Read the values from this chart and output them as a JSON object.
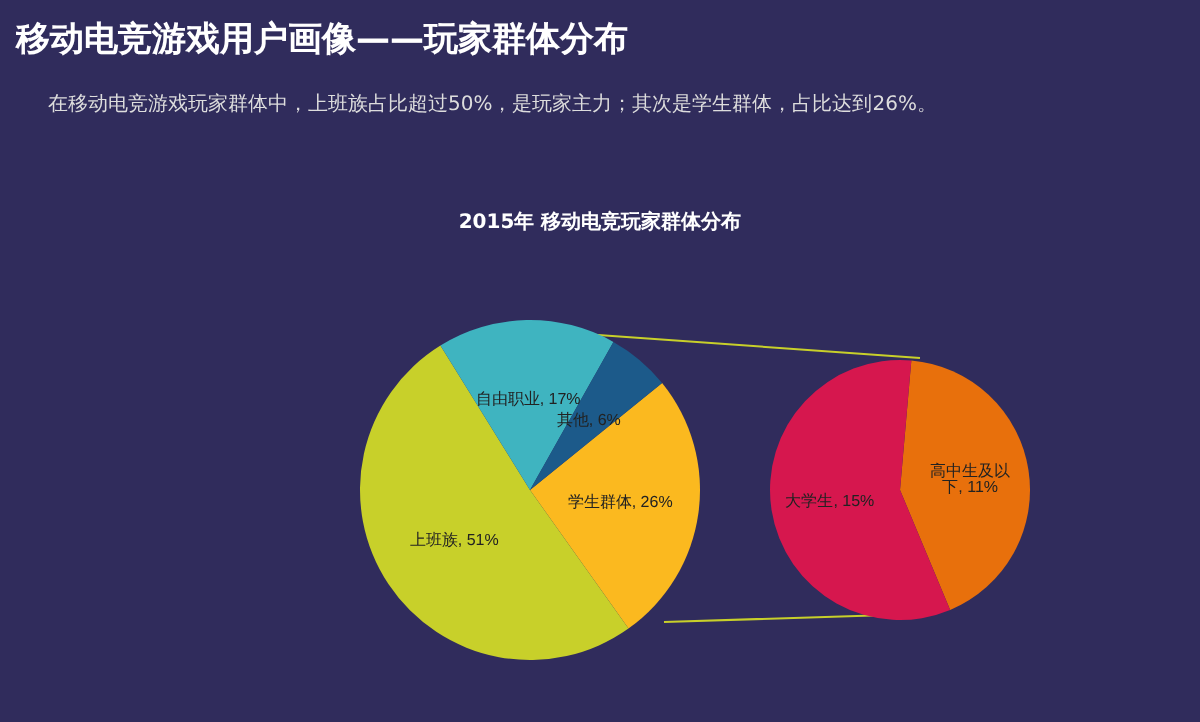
{
  "chart_data": [
    {
      "type": "pie",
      "title": "移动电竞游戏用户画像——玩家群体分布",
      "subtitle": "在移动电竞游戏玩家群体中，上班族占比超过50%，是玩家主力；其次是学生群体，占比达到26%。",
      "annotations": [
        "2015年 移动电竞玩家群体分布"
      ],
      "categories": [
        "学生群体",
        "上班族",
        "自由职业",
        "其他"
      ],
      "values": [
        26,
        51,
        17,
        6
      ],
      "colors": [
        "#fbb91f",
        "#c8d02a",
        "#3fb4c0",
        "#1c5a8a"
      ],
      "value_labels": [
        "26%",
        "51%",
        "17%",
        "6%"
      ]
    },
    {
      "type": "pie",
      "categories": [
        "高中生及以下",
        "大学生"
      ],
      "values": [
        11,
        15
      ],
      "colors": [
        "#e8700c",
        "#d6174e"
      ],
      "value_labels": [
        "11%",
        "15%"
      ]
    }
  ]
}
